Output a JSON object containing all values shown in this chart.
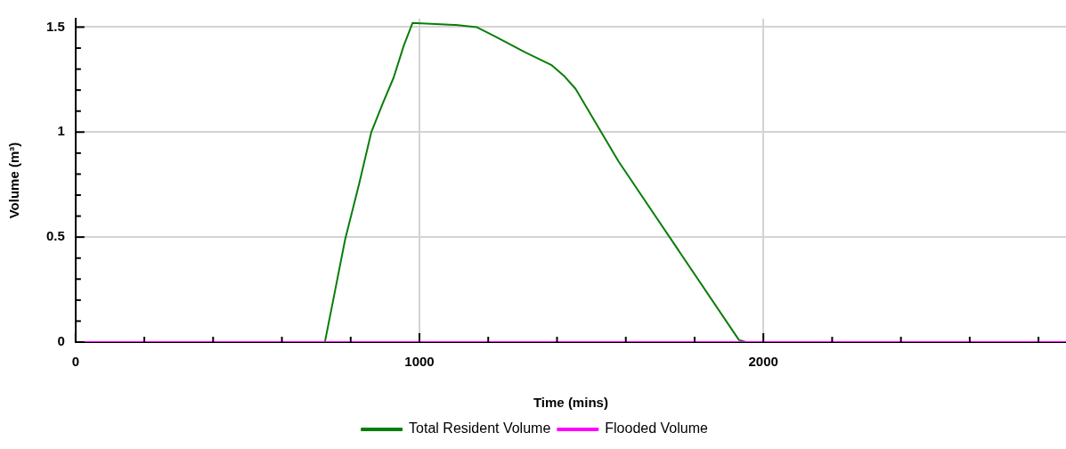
{
  "chart_data": {
    "type": "line",
    "xlabel": "Time (mins)",
    "ylabel": "Volume (m³)",
    "xlim": [
      0,
      2880
    ],
    "ylim": [
      0,
      1.54
    ],
    "xticks": [
      0,
      {
        "value": 200,
        "label": null
      },
      {
        "value": 400,
        "label": null
      },
      {
        "value": 600,
        "label": null
      },
      {
        "value": 800,
        "label": null
      },
      1000,
      {
        "value": 1200,
        "label": null
      },
      {
        "value": 1400,
        "label": null
      },
      {
        "value": 1600,
        "label": null
      },
      {
        "value": 1800,
        "label": null
      },
      2000,
      {
        "value": 2200,
        "label": null
      },
      {
        "value": 2400,
        "label": null
      },
      {
        "value": 2600,
        "label": null
      },
      {
        "value": 2800,
        "label": null
      }
    ],
    "yticks": [
      0,
      {
        "value": 0.1,
        "label": null
      },
      {
        "value": 0.2,
        "label": null
      },
      {
        "value": 0.3,
        "label": null
      },
      {
        "value": 0.4,
        "label": null
      },
      0.5,
      {
        "value": 0.6,
        "label": null
      },
      {
        "value": 0.7,
        "label": null
      },
      {
        "value": 0.8,
        "label": null
      },
      {
        "value": 0.9,
        "label": null
      },
      1,
      {
        "value": 1.1,
        "label": null
      },
      {
        "value": 1.2,
        "label": null
      },
      {
        "value": 1.3,
        "label": null
      },
      {
        "value": 1.4,
        "label": null
      },
      1.5
    ],
    "grid": true,
    "legend": "bottom",
    "marker": "none",
    "line_style": "solid",
    "series": [
      {
        "name": "Total Resident Volume",
        "color": "#0a7d0a",
        "x": [
          0,
          725,
          754,
          784,
          824,
          860,
          894,
          925,
          954,
          980,
          1106,
          1166,
          1221,
          1307,
          1383,
          1422,
          1454,
          1579,
          1929,
          1950,
          2880
        ],
        "values": [
          0,
          0,
          0.24,
          0.49,
          0.75,
          1.0,
          1.14,
          1.26,
          1.41,
          1.52,
          1.51,
          1.5,
          1.455,
          1.38,
          1.32,
          1.265,
          1.206,
          0.86,
          0.01,
          0,
          0
        ]
      },
      {
        "name": "Flooded Volume",
        "color": "#ff00ff",
        "x": [
          0,
          2880
        ],
        "values": [
          0,
          0
        ]
      }
    ]
  }
}
